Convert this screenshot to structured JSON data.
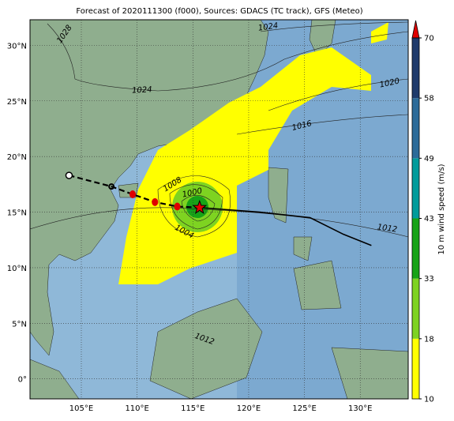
{
  "map": {
    "title": "Forecast of 2020111300 (f000), Sources: GDACS (TC track), GFS (Meteo)",
    "lon_ticks": [
      {
        "value": 105,
        "label": "105°E"
      },
      {
        "value": 110,
        "label": "110°E"
      },
      {
        "value": 115,
        "label": "115°E"
      },
      {
        "value": 120,
        "label": "120°E"
      },
      {
        "value": 125,
        "label": "125°E"
      },
      {
        "value": 130,
        "label": "130°E"
      }
    ],
    "lat_ticks": [
      {
        "value": 30,
        "label": "30°N"
      },
      {
        "value": 25,
        "label": "25°N"
      },
      {
        "value": 20,
        "label": "20°N"
      },
      {
        "value": 15,
        "label": "15°N"
      },
      {
        "value": 10,
        "label": "10°N"
      },
      {
        "value": 5,
        "label": "5°N"
      },
      {
        "value": 0,
        "label": "0°"
      }
    ],
    "lonlim": [
      100.4,
      134.3
    ],
    "latlim": [
      -1.8,
      32.3
    ],
    "grid": true,
    "colorbar": {
      "label": "10 m wind speed (m/s)",
      "ticks": [
        10,
        18,
        33,
        43,
        49,
        58,
        70
      ],
      "colors": [
        "#ffff00",
        "#7ed321",
        "#17a317",
        "#009b9b",
        "#2c6b99",
        "#1e3a6b"
      ],
      "extend_color": "#e00000"
    },
    "isobar_labels": [
      "1028",
      "1024",
      "1024",
      "1020",
      "1016",
      "1012",
      "1008",
      "1004",
      "1000",
      "1012"
    ],
    "track_past": [
      [
        103.9,
        18.3
      ],
      [
        107.7,
        17.3
      ],
      [
        109.6,
        16.6
      ],
      [
        111.6,
        15.9
      ],
      [
        113.6,
        15.5
      ],
      [
        115.6,
        15.4
      ]
    ],
    "track_forecast": [
      [
        115.6,
        15.4
      ],
      [
        121.0,
        15.0
      ],
      [
        125.5,
        14.5
      ],
      [
        128.5,
        13.0
      ],
      [
        131.0,
        12.0
      ]
    ]
  }
}
